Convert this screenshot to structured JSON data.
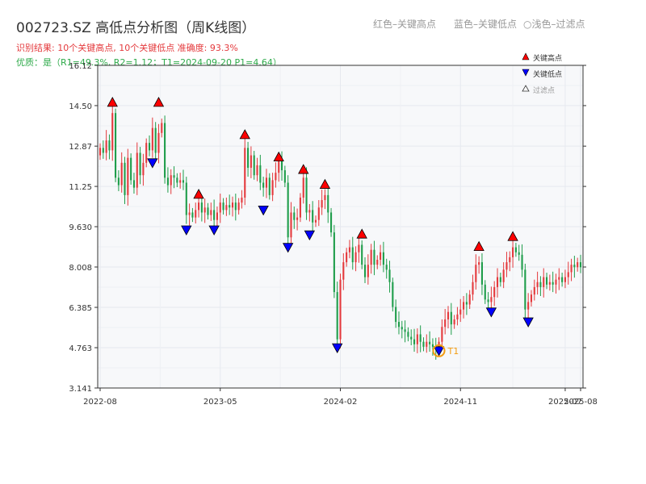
{
  "header": {
    "title": "002723.SZ 高低点分析图（周K线图）",
    "legend_red": "红色–关键高点",
    "legend_blue": "蓝色–关键低点",
    "legend_filtered": "○浅色–过滤点",
    "result_line": "识别结果: 10个关键高点, 10个关键低点   准确度: 93.3%",
    "quality_line": "优质：是（R1=49.3%, R2=1.12；T1=2024-09-20 P1=4.64）"
  },
  "colors": {
    "up": "#e4393c",
    "down": "#1e9d4a",
    "high_marker": "#ff0000",
    "low_marker": "#0000ff",
    "t1_ring": "#f39c12",
    "grid": "#e6e9ef",
    "plot_bg": "#f7f8fa"
  },
  "chart_data": {
    "type": "candlestick",
    "y_ticks": [
      "3.141",
      "4.763",
      "6.385",
      "8.008",
      "9.630",
      "11.25",
      "12.87",
      "14.50",
      "16.12"
    ],
    "ylim": [
      3.141,
      16.12
    ],
    "x_ticks": [
      "2022-08",
      "2023-05",
      "2024-02",
      "2024-11",
      "2025-07",
      "2025-08"
    ],
    "x_tick_weeks": [
      0,
      39,
      78,
      117,
      151,
      156
    ],
    "total_weeks": 157,
    "legend": {
      "high": "关键高点",
      "low": "关键低点",
      "filtered": "过滤点"
    },
    "key_highs": [
      {
        "week": 4,
        "value": 14.6
      },
      {
        "week": 19,
        "value": 14.6
      },
      {
        "week": 32,
        "value": 10.9
      },
      {
        "week": 47,
        "value": 13.3
      },
      {
        "week": 58,
        "value": 12.4
      },
      {
        "week": 66,
        "value": 11.9
      },
      {
        "week": 73,
        "value": 11.3
      },
      {
        "week": 85,
        "value": 9.3
      },
      {
        "week": 123,
        "value": 8.8
      },
      {
        "week": 134,
        "value": 9.2
      }
    ],
    "key_lows": [
      {
        "week": 17,
        "value": 12.2
      },
      {
        "week": 28,
        "value": 9.5
      },
      {
        "week": 37,
        "value": 9.5
      },
      {
        "week": 53,
        "value": 10.3
      },
      {
        "week": 61,
        "value": 8.8
      },
      {
        "week": 68,
        "value": 9.3
      },
      {
        "week": 77,
        "value": 4.76
      },
      {
        "week": 110,
        "value": 4.64
      },
      {
        "week": 127,
        "value": 6.2
      },
      {
        "week": 139,
        "value": 5.8
      }
    ],
    "t1": {
      "week": 110,
      "value": 4.64,
      "label": "T1"
    },
    "closes": [
      12.8,
      12.6,
      13.1,
      12.7,
      14.2,
      11.6,
      11.3,
      12.2,
      10.9,
      12.4,
      11.5,
      11.2,
      12.6,
      11.7,
      12.2,
      13.0,
      12.7,
      13.6,
      12.6,
      13.4,
      13.8,
      11.6,
      11.3,
      11.7,
      11.6,
      11.4,
      11.5,
      11.4,
      10.1,
      10.2,
      10.0,
      10.3,
      10.6,
      10.2,
      10.4,
      10.1,
      10.3,
      9.9,
      10.2,
      10.6,
      10.3,
      10.5,
      10.4,
      10.6,
      10.3,
      10.6,
      10.8,
      12.8,
      12.0,
      12.5,
      11.7,
      12.1,
      11.4,
      11.2,
      11.6,
      10.9,
      11.5,
      11.8,
      12.3,
      11.9,
      11.4,
      9.2,
      10.2,
      9.9,
      10.0,
      10.8,
      11.6,
      10.2,
      10.3,
      9.8,
      9.9,
      10.4,
      10.7,
      10.9,
      10.2,
      9.4,
      7.0,
      5.1,
      7.5,
      8.2,
      8.6,
      8.8,
      8.2,
      8.6,
      8.9,
      8.1,
      7.6,
      8.1,
      8.7,
      8.1,
      8.3,
      8.6,
      8.1,
      7.9,
      7.4,
      6.4,
      5.8,
      5.6,
      5.5,
      5.4,
      5.2,
      5.1,
      4.9,
      5.3,
      5.0,
      4.8,
      5.0,
      4.9,
      4.8,
      4.7,
      5.0,
      5.6,
      5.9,
      6.2,
      5.7,
      5.9,
      6.1,
      6.3,
      6.6,
      6.5,
      6.9,
      7.4,
      8.1,
      8.2,
      7.3,
      6.7,
      6.6,
      6.8,
      7.2,
      7.6,
      7.4,
      7.9,
      8.2,
      8.4,
      8.8,
      8.6,
      8.5,
      7.9,
      6.3,
      6.6,
      6.9,
      7.2,
      7.4,
      7.2,
      7.6,
      7.3,
      7.4,
      7.3,
      7.5,
      7.6,
      7.4,
      7.6,
      7.8,
      8.1,
      8.0,
      8.2,
      8.0
    ]
  }
}
